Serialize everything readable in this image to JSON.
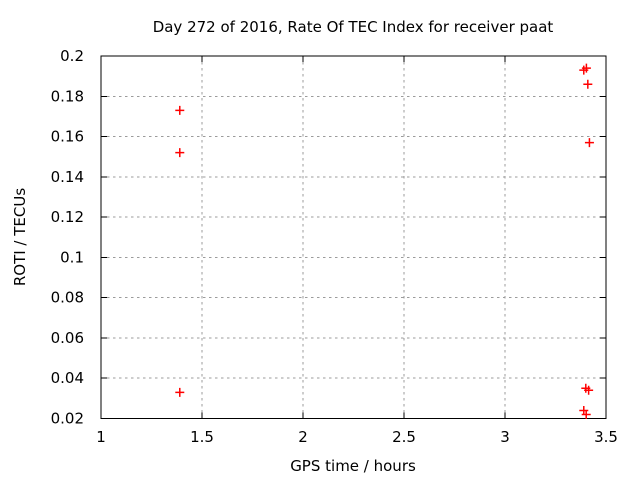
{
  "window": {
    "background": "#ffffff"
  },
  "colors": {
    "marker": "#ff0000",
    "grid": "#9b9b9b",
    "axis": "#000000",
    "text": "#000000"
  },
  "chart_data": {
    "type": "scatter",
    "title": "Day 272 of 2016, Rate Of TEC Index for receiver paat",
    "xlabel": "GPS time / hours",
    "ylabel": "ROTI / TECUs",
    "xlim": [
      1,
      3.5
    ],
    "ylim": [
      0.02,
      0.2
    ],
    "grid": true,
    "legend": "none",
    "marker": "plus",
    "x_ticks": [
      {
        "value": 1,
        "label": "1"
      },
      {
        "value": 1.5,
        "label": "1.5"
      },
      {
        "value": 2,
        "label": "2"
      },
      {
        "value": 2.5,
        "label": "2.5"
      },
      {
        "value": 3,
        "label": "3"
      },
      {
        "value": 3.5,
        "label": "3.5"
      }
    ],
    "y_ticks": [
      {
        "value": 0.02,
        "label": "0.02"
      },
      {
        "value": 0.04,
        "label": "0.04"
      },
      {
        "value": 0.06,
        "label": "0.06"
      },
      {
        "value": 0.08,
        "label": "0.08"
      },
      {
        "value": 0.1,
        "label": "0.1"
      },
      {
        "value": 0.12,
        "label": "0.12"
      },
      {
        "value": 0.14,
        "label": "0.14"
      },
      {
        "value": 0.16,
        "label": "0.16"
      },
      {
        "value": 0.18,
        "label": "0.18"
      },
      {
        "value": 0.2,
        "label": "0.2"
      }
    ],
    "series": [
      {
        "name": "ROTI",
        "color": "#ff0000",
        "points": [
          {
            "x": 1.39,
            "y": 0.173
          },
          {
            "x": 1.39,
            "y": 0.152
          },
          {
            "x": 1.39,
            "y": 0.033
          },
          {
            "x": 3.39,
            "y": 0.193
          },
          {
            "x": 3.403,
            "y": 0.194
          },
          {
            "x": 3.41,
            "y": 0.186
          },
          {
            "x": 3.418,
            "y": 0.157
          },
          {
            "x": 3.4,
            "y": 0.035
          },
          {
            "x": 3.414,
            "y": 0.034
          },
          {
            "x": 3.39,
            "y": 0.024
          },
          {
            "x": 3.402,
            "y": 0.022
          }
        ]
      }
    ]
  }
}
